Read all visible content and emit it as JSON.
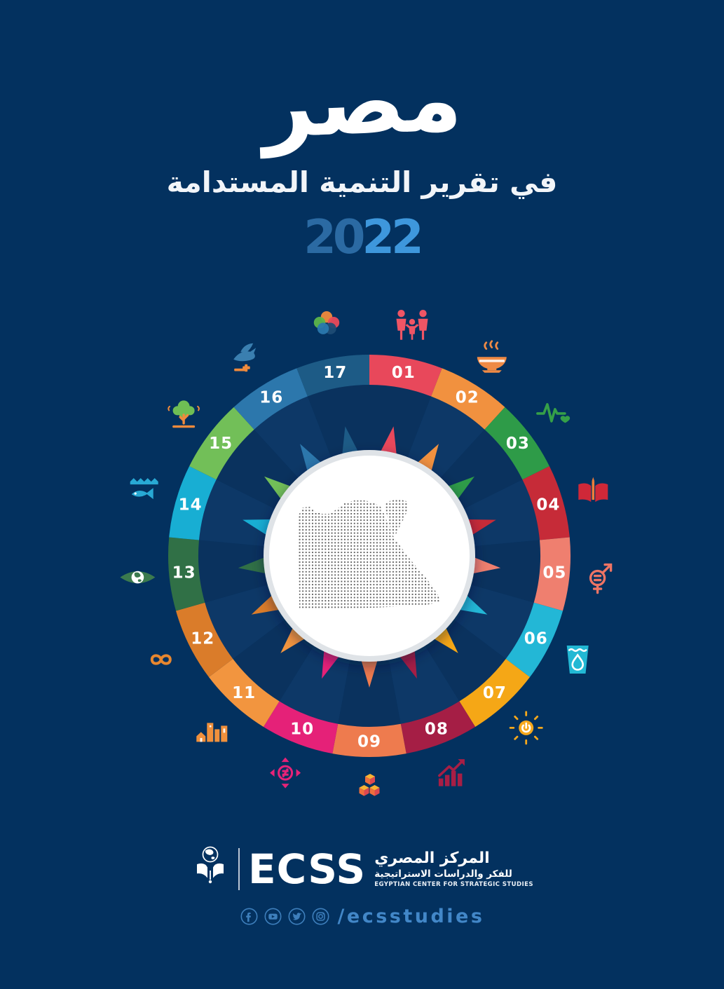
{
  "page": {
    "background_color": "#03315f",
    "accent_light_blue": "#4287c8"
  },
  "header": {
    "calligraphy": "مصر",
    "subtitle": "في تقرير التنمية المستدامة",
    "year": "2022",
    "year_first": "20",
    "year_second": "22",
    "year_color_dark": "#2b6aa3",
    "year_color_light": "#3e97dc"
  },
  "wheel": {
    "center": "dotted-map-of-egypt",
    "map_dot_color": "#5c5c5c",
    "segments": [
      {
        "num": "01",
        "color": "#e8485b",
        "icon": "no-poverty-family-icon"
      },
      {
        "num": "02",
        "color": "#f1913f",
        "icon": "zero-hunger-bowl-icon"
      },
      {
        "num": "03",
        "color": "#2e9b48",
        "icon": "good-health-heartbeat-icon"
      },
      {
        "num": "04",
        "color": "#c62b38",
        "icon": "education-book-icon"
      },
      {
        "num": "05",
        "color": "#ef7f6f",
        "icon": "gender-equality-icon"
      },
      {
        "num": "06",
        "color": "#23b7d6",
        "icon": "clean-water-glass-icon"
      },
      {
        "num": "07",
        "color": "#f5a716",
        "icon": "clean-energy-sun-icon"
      },
      {
        "num": "08",
        "color": "#a51e45",
        "icon": "economic-growth-chart-icon"
      },
      {
        "num": "09",
        "color": "#ee7b4e",
        "icon": "industry-innovation-cubes-icon"
      },
      {
        "num": "10",
        "color": "#e52178",
        "icon": "reduced-inequalities-icon"
      },
      {
        "num": "11",
        "color": "#f2953f",
        "icon": "sustainable-cities-icon"
      },
      {
        "num": "12",
        "color": "#da7c2a",
        "icon": "responsible-consumption-infinity-icon"
      },
      {
        "num": "13",
        "color": "#307046",
        "icon": "climate-action-eye-icon"
      },
      {
        "num": "14",
        "color": "#18aed3",
        "icon": "life-below-water-fish-icon"
      },
      {
        "num": "15",
        "color": "#72bf58",
        "icon": "life-on-land-tree-icon"
      },
      {
        "num": "16",
        "color": "#2c77ac",
        "icon": "peace-justice-dove-icon"
      },
      {
        "num": "17",
        "color": "#1d5b86",
        "icon": "partnerships-circles-icon"
      }
    ]
  },
  "logo": {
    "name": "ECSS",
    "icon": "book-globe-icon",
    "arabic_line1": "المركز المصري",
    "arabic_line2": "للفكر والدراسات الاستراتيجية",
    "english_caption": "EGYPTIAN CENTER FOR STRATEGIC STUDIES"
  },
  "footer": {
    "social_icons": [
      "facebook-icon",
      "youtube-icon",
      "twitter-icon",
      "instagram-icon"
    ],
    "handle": "/ecsstudies"
  }
}
